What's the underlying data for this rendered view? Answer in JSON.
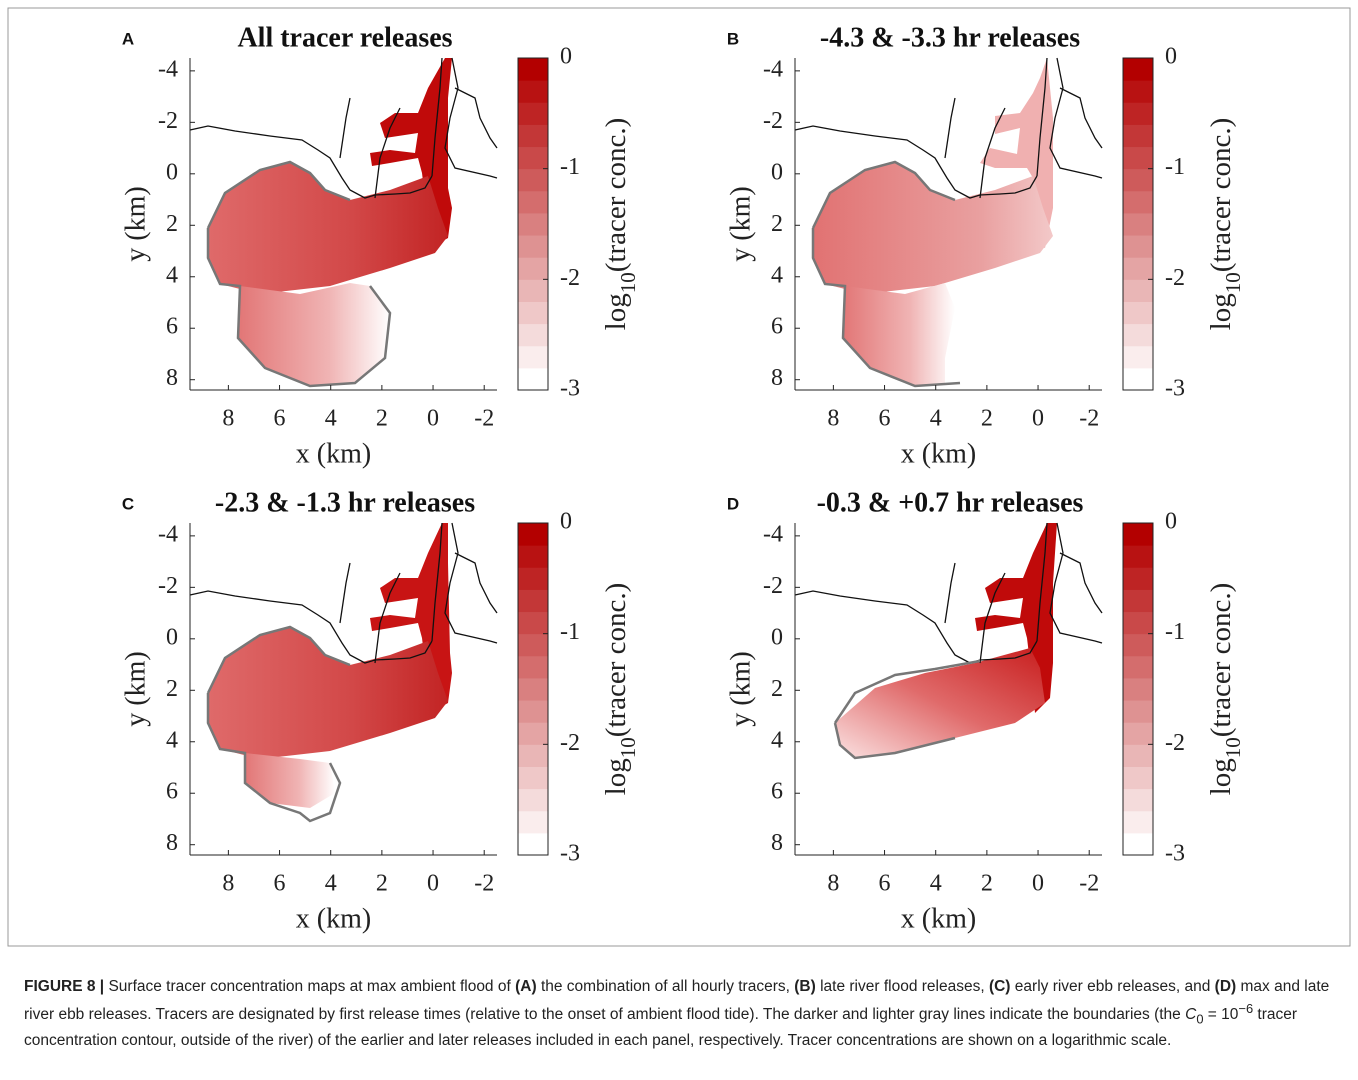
{
  "chart_data": [
    {
      "type": "map",
      "label": "A",
      "title": "All tracer releases",
      "xlabel": "x (km)",
      "ylabel": "y (km)",
      "xlim": [
        9.5,
        -2.5
      ],
      "ylim": [
        -4.5,
        8.4
      ],
      "xticks": [
        8,
        6,
        4,
        2,
        0,
        -2
      ],
      "yticks": [
        -4,
        -2,
        0,
        2,
        4,
        6,
        8
      ],
      "colorbar": {
        "label": [
          "log",
          "10",
          "(tracer conc.)"
        ],
        "clim": [
          -3,
          0
        ],
        "ticks": [
          -3,
          -2,
          -1,
          0
        ],
        "levels": 15,
        "colors": [
          "#ffffff",
          "#b30000"
        ]
      }
    },
    {
      "type": "map",
      "label": "B",
      "title": "-4.3 & -3.3 hr releases",
      "xlabel": "x (km)",
      "ylabel": "y (km)",
      "xlim": [
        9.5,
        -2.5
      ],
      "ylim": [
        -4.5,
        8.4
      ],
      "xticks": [
        8,
        6,
        4,
        2,
        0,
        -2
      ],
      "yticks": [
        -4,
        -2,
        0,
        2,
        4,
        6,
        8
      ],
      "colorbar": {
        "label": [
          "log",
          "10",
          "(tracer conc.)"
        ],
        "clim": [
          -3,
          0
        ],
        "ticks": [
          -3,
          -2,
          -1,
          0
        ],
        "levels": 15,
        "colors": [
          "#ffffff",
          "#b30000"
        ]
      }
    },
    {
      "type": "map",
      "label": "C",
      "title": "-2.3 & -1.3 hr releases",
      "xlabel": "x (km)",
      "ylabel": "y (km)",
      "xlim": [
        9.5,
        -2.5
      ],
      "ylim": [
        -4.5,
        8.4
      ],
      "xticks": [
        8,
        6,
        4,
        2,
        0,
        -2
      ],
      "yticks": [
        -4,
        -2,
        0,
        2,
        4,
        6,
        8
      ],
      "colorbar": {
        "label": [
          "log",
          "10",
          "(tracer conc.)"
        ],
        "clim": [
          -3,
          0
        ],
        "ticks": [
          -3,
          -2,
          -1,
          0
        ],
        "levels": 15,
        "colors": [
          "#ffffff",
          "#b30000"
        ]
      }
    },
    {
      "type": "map",
      "label": "D",
      "title": "-0.3 & +0.7 hr releases",
      "xlabel": "x (km)",
      "ylabel": "y (km)",
      "xlim": [
        9.5,
        -2.5
      ],
      "ylim": [
        -4.5,
        8.4
      ],
      "xticks": [
        8,
        6,
        4,
        2,
        0,
        -2
      ],
      "yticks": [
        -4,
        -2,
        0,
        2,
        4,
        6,
        8
      ],
      "colorbar": {
        "label": [
          "log",
          "10",
          "(tracer conc.)"
        ],
        "clim": [
          -3,
          0
        ],
        "ticks": [
          -3,
          -2,
          -1,
          0
        ],
        "levels": 15,
        "colors": [
          "#ffffff",
          "#b30000"
        ]
      }
    }
  ],
  "caption": [
    {
      "text": "FIGURE 8 |",
      "style": "bold"
    },
    {
      "text": " Surface tracer concentration maps at max ambient flood of "
    },
    {
      "text": "(A)",
      "style": "bold"
    },
    {
      "text": " the combination of all hourly tracers, "
    },
    {
      "text": "(B)",
      "style": "bold"
    },
    {
      "text": " late river flood releases, "
    },
    {
      "text": "(C)",
      "style": "bold"
    },
    {
      "text": " early river ebb releases, and "
    },
    {
      "text": "(D)",
      "style": "bold"
    },
    {
      "text": " max and late river ebb releases. Tracers are designated by first release times (relative to the onset of ambient flood tide). The darker and lighter gray lines indicate the boundaries (the "
    },
    {
      "text": "C",
      "style": "italic"
    },
    {
      "text": "0",
      "style": "sub"
    },
    {
      "text": " = 10"
    },
    {
      "text": "−6",
      "style": "sup"
    },
    {
      "text": " tracer concentration contour, outside of the river) of the earlier and later releases included in each panel, respectively. Tracer concentrations are shown on a logarithmic scale."
    }
  ]
}
